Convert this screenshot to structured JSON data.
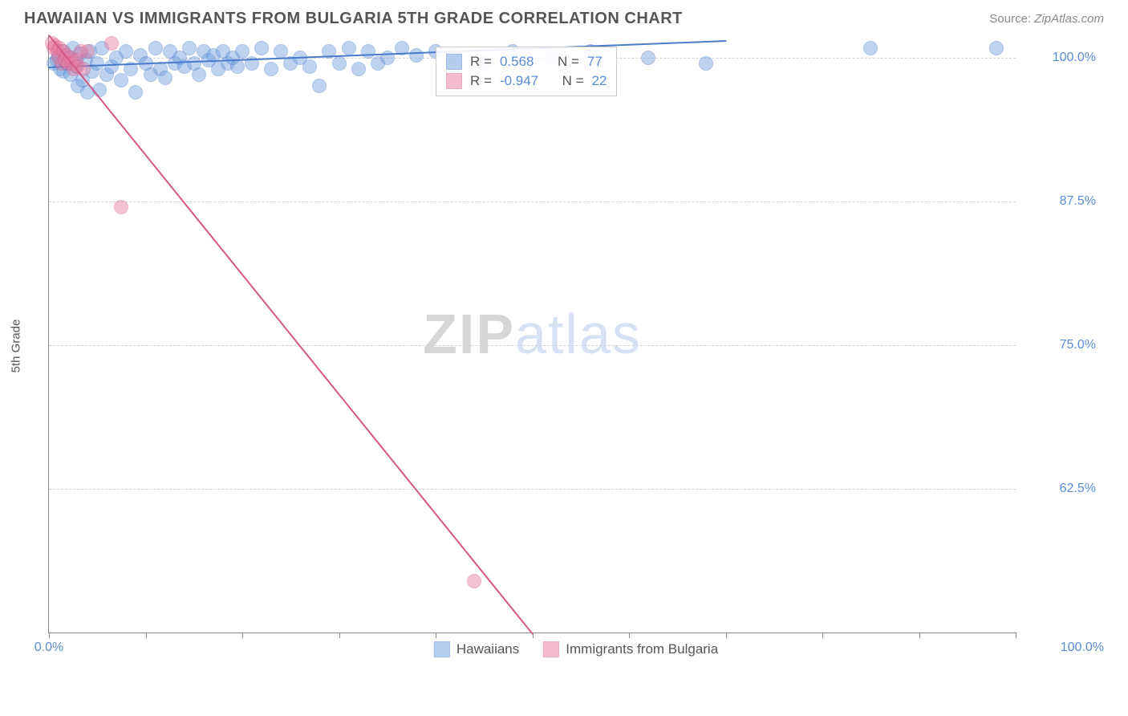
{
  "title": "HAWAIIAN VS IMMIGRANTS FROM BULGARIA 5TH GRADE CORRELATION CHART",
  "source_label": "Source:",
  "source_name": "ZipAtlas.com",
  "ylabel": "5th Grade",
  "watermark_zip": "ZIP",
  "watermark_atlas": "atlas",
  "chart": {
    "type": "scatter",
    "background_color": "#ffffff",
    "grid_color": "#d5d5d5",
    "axis_color": "#888888",
    "label_color": "#5b8dd6",
    "xlim": [
      0,
      100
    ],
    "ylim": [
      50,
      102
    ],
    "ytick_values": [
      62.5,
      75.0,
      87.5,
      100.0
    ],
    "ytick_labels": [
      "62.5%",
      "75.0%",
      "87.5%",
      "100.0%"
    ],
    "xtick_values": [
      0,
      10,
      20,
      30,
      40,
      50,
      60,
      70,
      80,
      90,
      100
    ],
    "xlabel_min": "0.0%",
    "xlabel_max": "100.0%",
    "marker_radius": 9,
    "marker_opacity": 0.45,
    "series": [
      {
        "name": "Hawaiians",
        "color": "#6fa0e0",
        "stroke": "#4a7bc8",
        "R_label": "R =",
        "R_value": "0.568",
        "N_label": "N =",
        "N_value": "77",
        "trend": {
          "x1": 0,
          "y1": 99.2,
          "x2": 70,
          "y2": 101.5
        },
        "points": [
          [
            0.5,
            99.5
          ],
          [
            0.8,
            99.8
          ],
          [
            1.0,
            100.2
          ],
          [
            1.2,
            99.0
          ],
          [
            1.4,
            100.5
          ],
          [
            1.5,
            98.8
          ],
          [
            1.8,
            99.5
          ],
          [
            2.0,
            100.0
          ],
          [
            2.2,
            98.5
          ],
          [
            2.5,
            100.8
          ],
          [
            2.8,
            99.2
          ],
          [
            3.0,
            97.5
          ],
          [
            3.2,
            100.3
          ],
          [
            3.5,
            98.0
          ],
          [
            3.8,
            99.8
          ],
          [
            4.0,
            97.0
          ],
          [
            4.2,
            100.5
          ],
          [
            4.5,
            98.8
          ],
          [
            5.0,
            99.5
          ],
          [
            5.2,
            97.2
          ],
          [
            5.5,
            100.8
          ],
          [
            6.0,
            98.5
          ],
          [
            6.5,
            99.2
          ],
          [
            7.0,
            100.0
          ],
          [
            7.5,
            98.0
          ],
          [
            8.0,
            100.5
          ],
          [
            8.5,
            99.0
          ],
          [
            9.0,
            97.0
          ],
          [
            9.5,
            100.2
          ],
          [
            10.0,
            99.5
          ],
          [
            10.5,
            98.5
          ],
          [
            11.0,
            100.8
          ],
          [
            11.5,
            99.0
          ],
          [
            12.0,
            98.2
          ],
          [
            12.5,
            100.5
          ],
          [
            13.0,
            99.5
          ],
          [
            13.5,
            100.0
          ],
          [
            14.0,
            99.2
          ],
          [
            14.5,
            100.8
          ],
          [
            15.0,
            99.5
          ],
          [
            15.5,
            98.5
          ],
          [
            16.0,
            100.5
          ],
          [
            16.5,
            99.8
          ],
          [
            17.0,
            100.2
          ],
          [
            17.5,
            99.0
          ],
          [
            18.0,
            100.5
          ],
          [
            18.5,
            99.5
          ],
          [
            19.0,
            100.0
          ],
          [
            19.5,
            99.2
          ],
          [
            20.0,
            100.5
          ],
          [
            21.0,
            99.5
          ],
          [
            22.0,
            100.8
          ],
          [
            23.0,
            99.0
          ],
          [
            24.0,
            100.5
          ],
          [
            25.0,
            99.5
          ],
          [
            26.0,
            100.0
          ],
          [
            27.0,
            99.2
          ],
          [
            28.0,
            97.5
          ],
          [
            29.0,
            100.5
          ],
          [
            30.0,
            99.5
          ],
          [
            31.0,
            100.8
          ],
          [
            32.0,
            99.0
          ],
          [
            33.0,
            100.5
          ],
          [
            34.0,
            99.5
          ],
          [
            35.0,
            100.0
          ],
          [
            36.5,
            100.8
          ],
          [
            38.0,
            100.2
          ],
          [
            40.0,
            100.5
          ],
          [
            42.0,
            100.0
          ],
          [
            45.0,
            99.5
          ],
          [
            48.0,
            100.5
          ],
          [
            52.0,
            100.0
          ],
          [
            56.0,
            100.5
          ],
          [
            62.0,
            100.0
          ],
          [
            68.0,
            99.5
          ],
          [
            85.0,
            100.8
          ],
          [
            98.0,
            100.8
          ]
        ]
      },
      {
        "name": "Immigrants from Bulgaria",
        "color": "#e87ba0",
        "stroke": "#d45a85",
        "R_label": "R =",
        "R_value": "-0.947",
        "N_label": "N =",
        "N_value": "22",
        "trend": {
          "x1": 0,
          "y1": 102,
          "x2": 50,
          "y2": 50
        },
        "points": [
          [
            0.3,
            101.2
          ],
          [
            0.5,
            100.8
          ],
          [
            0.7,
            101.0
          ],
          [
            0.9,
            100.5
          ],
          [
            1.0,
            100.0
          ],
          [
            1.1,
            100.8
          ],
          [
            1.3,
            99.5
          ],
          [
            1.5,
            100.5
          ],
          [
            1.7,
            99.8
          ],
          [
            1.8,
            100.2
          ],
          [
            2.0,
            99.5
          ],
          [
            2.2,
            100.0
          ],
          [
            2.4,
            99.5
          ],
          [
            2.6,
            99.0
          ],
          [
            2.8,
            99.8
          ],
          [
            3.0,
            99.2
          ],
          [
            3.3,
            100.5
          ],
          [
            3.6,
            99.0
          ],
          [
            4.0,
            100.5
          ],
          [
            6.5,
            101.2
          ],
          [
            7.5,
            87.0
          ],
          [
            44.0,
            54.5
          ]
        ]
      }
    ]
  },
  "legend": {
    "series1_label": "Hawaiians",
    "series2_label": "Immigrants from Bulgaria"
  },
  "stats_box": {
    "left_pct": 40,
    "top_pct": 2
  }
}
